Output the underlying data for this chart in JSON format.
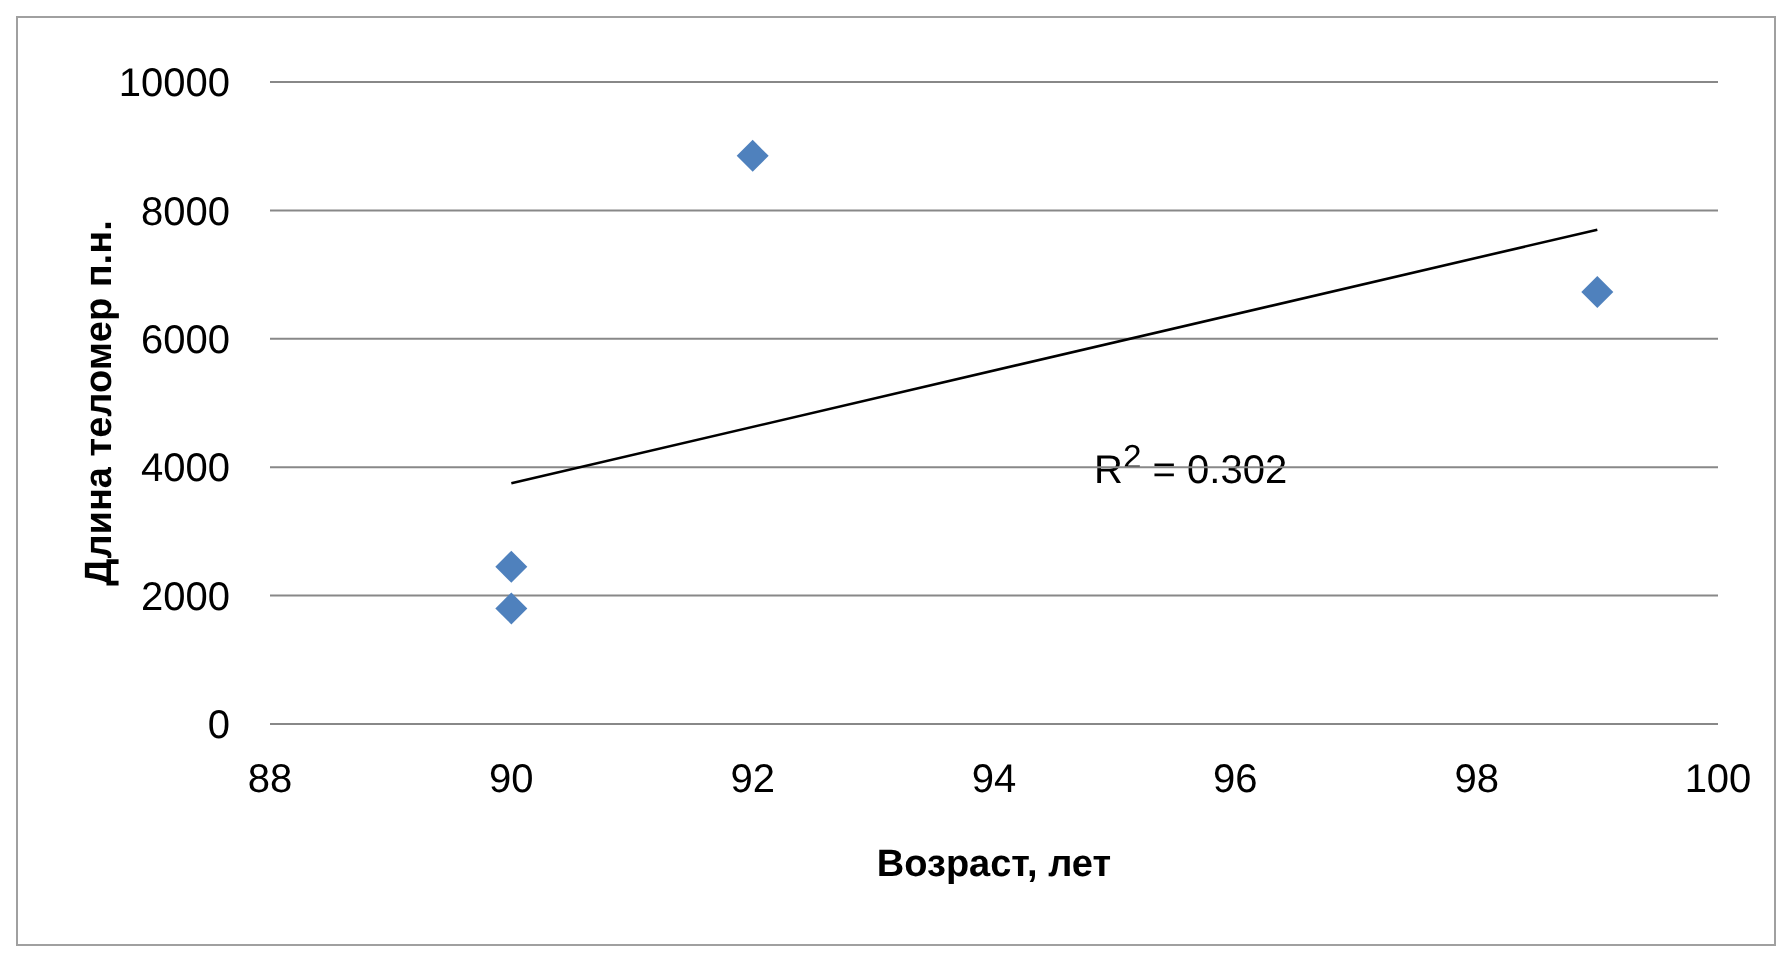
{
  "chart_data": {
    "type": "scatter",
    "xlabel": "Возраст, лет",
    "ylabel": "Длина теломер п.н.",
    "x": [
      90,
      90,
      92,
      99
    ],
    "series": [
      {
        "color": "#4f81bd",
        "values": [
          2450,
          1800,
          8850,
          6730
        ],
        "marker": "diamond"
      },
      {
        "type": "line",
        "color": "#000000",
        "x": [
          90,
          99
        ],
        "values": [
          3750,
          7700
        ],
        "marker": "none"
      }
    ],
    "xlim": [
      88,
      100
    ],
    "xticks": [
      88,
      90,
      92,
      94,
      96,
      98,
      100
    ],
    "ylim": [
      0,
      10000
    ],
    "yticks": [
      0,
      2000,
      4000,
      6000,
      8000,
      10000
    ],
    "grid": "y",
    "legend": false,
    "annotations": [
      "R$^{2}$ = 0.302"
    ]
  }
}
